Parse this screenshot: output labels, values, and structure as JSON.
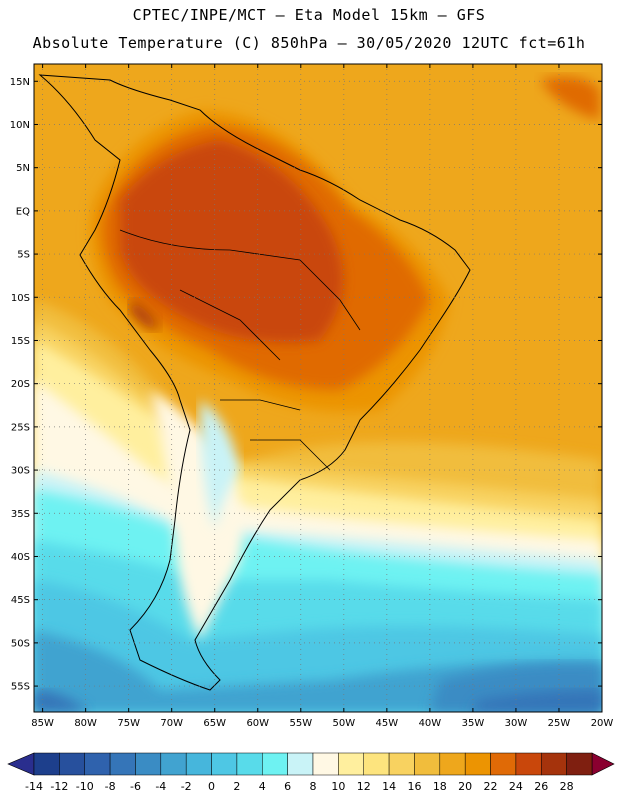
{
  "title": {
    "line1": "CPTEC/INPE/MCT –  Eta Model 15km – GFS",
    "line2": "Absolute Temperature (C) 850hPa – 30/05/2020 12UTC fct=61h"
  },
  "map": {
    "lat_labels": [
      "15N",
      "10N",
      "5N",
      "EQ",
      "5S",
      "10S",
      "15S",
      "20S",
      "25S",
      "30S",
      "35S",
      "40S",
      "45S",
      "50S",
      "55S"
    ],
    "lat_values": [
      15,
      10,
      5,
      0,
      -5,
      -10,
      -15,
      -20,
      -25,
      -30,
      -35,
      -40,
      -45,
      -50,
      -55
    ],
    "lon_labels": [
      "85W",
      "80W",
      "75W",
      "70W",
      "65W",
      "60W",
      "55W",
      "50W",
      "45W",
      "40W",
      "35W",
      "30W",
      "25W",
      "20W"
    ],
    "lon_values": [
      -85,
      -80,
      -75,
      -70,
      -65,
      -60,
      -55,
      -50,
      -45,
      -40,
      -35,
      -30,
      -25,
      -20
    ],
    "lat_range": [
      -58,
      17
    ],
    "lon_range": [
      -86,
      -20
    ]
  },
  "colorbar": {
    "labels": [
      "-14",
      "-12",
      "-10",
      "-8",
      "-6",
      "-4",
      "-2",
      "0",
      "2",
      "4",
      "6",
      "8",
      "10",
      "12",
      "14",
      "16",
      "18",
      "20",
      "22",
      "24",
      "26",
      "28"
    ],
    "colors": [
      "#1d3f8c",
      "#27509d",
      "#2f62ad",
      "#3575b8",
      "#3a8cc4",
      "#41a3d0",
      "#46b6dc",
      "#4ec7e4",
      "#58dbea",
      "#6ef2f2",
      "#c9f3f7",
      "#fff8e4",
      "#ffef9e",
      "#fde47e",
      "#f8d260",
      "#f1bd3c",
      "#eea71c",
      "#ec9402",
      "#e06a06",
      "#c9470b",
      "#a5330c",
      "#7f1f10"
    ],
    "under_color": "#2a2e8e",
    "over_color": "#8a0030"
  }
}
